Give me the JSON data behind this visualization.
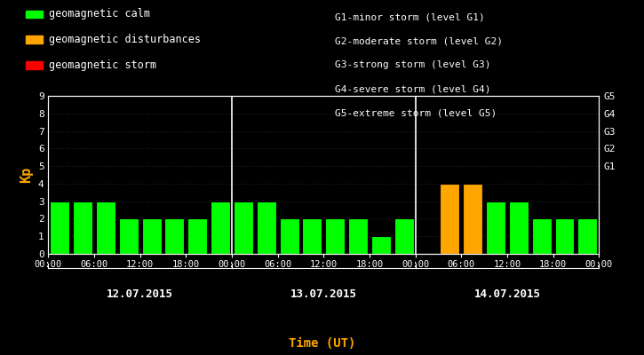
{
  "background_color": "#000000",
  "plot_bg_color": "#000000",
  "bar_values": [
    3,
    3,
    3,
    2,
    2,
    2,
    2,
    3,
    3,
    3,
    2,
    2,
    2,
    2,
    1,
    2,
    0,
    4,
    4,
    3,
    3,
    2,
    2,
    2
  ],
  "bar_colors": [
    "#00ff00",
    "#00ff00",
    "#00ff00",
    "#00ff00",
    "#00ff00",
    "#00ff00",
    "#00ff00",
    "#00ff00",
    "#00ff00",
    "#00ff00",
    "#00ff00",
    "#00ff00",
    "#00ff00",
    "#00ff00",
    "#00ff00",
    "#00ff00",
    "#000000",
    "#ffa500",
    "#ffa500",
    "#00ff00",
    "#00ff00",
    "#00ff00",
    "#00ff00",
    "#00ff00"
  ],
  "ylim": [
    0,
    9
  ],
  "yticks": [
    0,
    1,
    2,
    3,
    4,
    5,
    6,
    7,
    8,
    9
  ],
  "ytick_labels_left": [
    "0",
    "1",
    "2",
    "3",
    "4",
    "5",
    "6",
    "7",
    "8",
    "9"
  ],
  "ytick_labels_right": [
    "",
    "",
    "",
    "",
    "",
    "G1",
    "G2",
    "G3",
    "G4",
    "G5"
  ],
  "ylabel": "Kp",
  "xlabel": "Time (UT)",
  "day_labels": [
    "12.07.2015",
    "13.07.2015",
    "14.07.2015"
  ],
  "xtick_labels": [
    "00:00",
    "06:00",
    "12:00",
    "18:00",
    "00:00",
    "06:00",
    "12:00",
    "18:00",
    "00:00",
    "06:00",
    "12:00",
    "18:00",
    "00:00"
  ],
  "day_dividers": [
    8,
    16
  ],
  "legend_items": [
    {
      "label": "geomagnetic calm",
      "color": "#00ff00"
    },
    {
      "label": "geomagnetic disturbances",
      "color": "#ffa500"
    },
    {
      "label": "geomagnetic storm",
      "color": "#ff0000"
    }
  ],
  "right_legend_lines": [
    "G1-minor storm (level G1)",
    "G2-moderate storm (level G2)",
    "G3-strong storm (level G3)",
    "G4-severe storm (level G4)",
    "G5-extreme storm (level G5)"
  ],
  "text_color": "#ffffff",
  "axis_color": "#ffffff",
  "ylabel_color": "#ffa500",
  "xlabel_color": "#ffa500",
  "grid_color": "#404040",
  "bar_width": 0.85
}
